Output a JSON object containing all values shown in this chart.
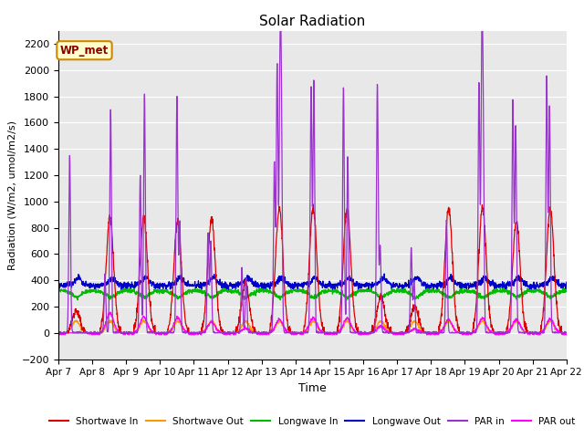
{
  "title": "Solar Radiation",
  "ylabel": "Radiation (W/m2, umol/m2/s)",
  "xlabel": "Time",
  "xlim_days": [
    7,
    22
  ],
  "ylim": [
    -200,
    2300
  ],
  "yticks": [
    -200,
    0,
    200,
    400,
    600,
    800,
    1000,
    1200,
    1400,
    1600,
    1800,
    2000,
    2200
  ],
  "xtick_labels": [
    "Apr 7",
    "Apr 8",
    "Apr 9",
    "Apr 10",
    "Apr 11",
    "Apr 12",
    "Apr 13",
    "Apr 14",
    "Apr 15",
    "Apr 16",
    "Apr 17",
    "Apr 18",
    "Apr 19",
    "Apr 20",
    "Apr 21",
    "Apr 22"
  ],
  "station_label": "WP_met",
  "background_color": "#e8e8e8",
  "colors": {
    "shortwave_in": "#dd0000",
    "shortwave_out": "#ff9900",
    "longwave_in": "#00bb00",
    "longwave_out": "#0000cc",
    "par_in": "#9933cc",
    "par_out": "#ff00ff"
  },
  "legend_entries": [
    "Shortwave In",
    "Shortwave Out",
    "Longwave In",
    "Longwave Out",
    "PAR in",
    "PAR out"
  ],
  "figsize": [
    6.4,
    4.8
  ],
  "dpi": 100
}
